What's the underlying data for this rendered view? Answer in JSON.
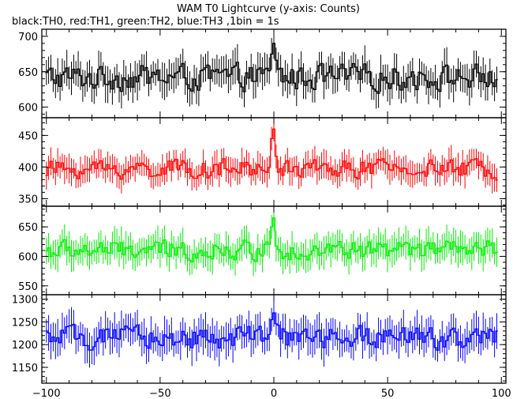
{
  "chart_data": {
    "type": "line",
    "title": "WAM T0 Lightcurve (y-axis: Counts)",
    "subtitle": "black:TH0, red:TH1, green:TH2, blue:TH3 ,1bin = 1s",
    "x_axis": {
      "range": [
        -102,
        102
      ],
      "ticks": [
        -100,
        -50,
        0,
        50,
        100
      ],
      "tick_labels": [
        "−100",
        "−50",
        "0",
        "50",
        "100"
      ]
    },
    "panels": [
      {
        "series": "TH0",
        "color": "#000000",
        "ylim": [
          585,
          710
        ],
        "yticks": [
          600,
          650,
          700
        ],
        "ytick_labels": [
          "600",
          "650",
          "700"
        ],
        "baseline": 642,
        "amplitude": 22,
        "error": 22,
        "spike_at_zero": 690
      },
      {
        "series": "TH1",
        "color": "#ff0000",
        "ylim": [
          338,
          478
        ],
        "yticks": [
          350,
          400,
          450
        ],
        "ytick_labels": [
          "350",
          "400",
          "450"
        ],
        "baseline": 397,
        "amplitude": 18,
        "error": 20,
        "spike_at_zero": 460
      },
      {
        "series": "TH2",
        "color": "#00ee00",
        "ylim": [
          535,
          685
        ],
        "yticks": [
          550,
          600,
          650
        ],
        "ytick_labels": [
          "550",
          "600",
          "650"
        ],
        "baseline": 610,
        "amplitude": 20,
        "error": 24,
        "spike_at_zero": 665
      },
      {
        "series": "TH3",
        "color": "#0000ff",
        "ylim": [
          1115,
          1310
        ],
        "yticks": [
          1150,
          1200,
          1250,
          1300
        ],
        "ytick_labels": [
          "1150",
          "1200",
          "1250",
          "1300"
        ],
        "baseline": 1215,
        "amplitude": 30,
        "error": 35,
        "spike_at_zero": 1270
      }
    ],
    "bin_width": 1,
    "grid": false,
    "legend": "none"
  }
}
